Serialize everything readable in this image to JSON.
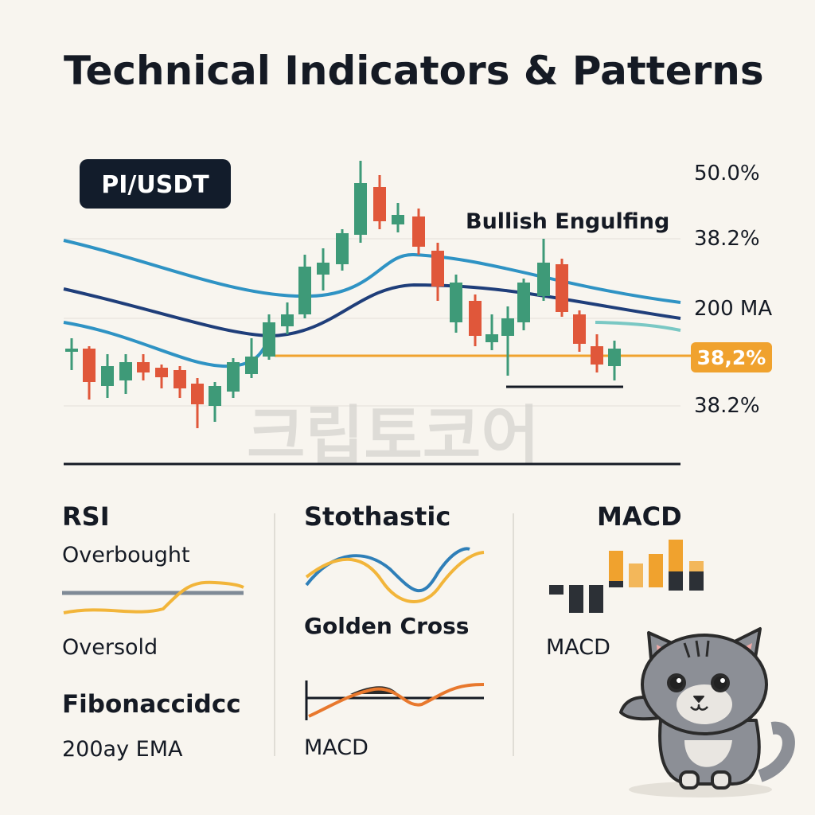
{
  "header": {
    "title": "Technical Indicators & Patterns"
  },
  "main_chart": {
    "pair": "PI/USDT",
    "annotation": "Bullish Engulfing",
    "levels": [
      "50.0%",
      "38.2%",
      "200 MA",
      "38.2%"
    ],
    "highlight_level": "38,2%",
    "watermark": "크립토코어"
  },
  "panels": [
    {
      "title": "RSI",
      "labels": [
        "Overbought",
        "Oversold"
      ]
    },
    {
      "title": "Stothastic",
      "labels": [
        "Golden Cross"
      ]
    },
    {
      "title": "MACD",
      "labels": [
        "MACD"
      ]
    }
  ],
  "footer": {
    "left": [
      "Fibonaccidcc",
      "200ay EMA"
    ],
    "middle": "MACD"
  }
}
